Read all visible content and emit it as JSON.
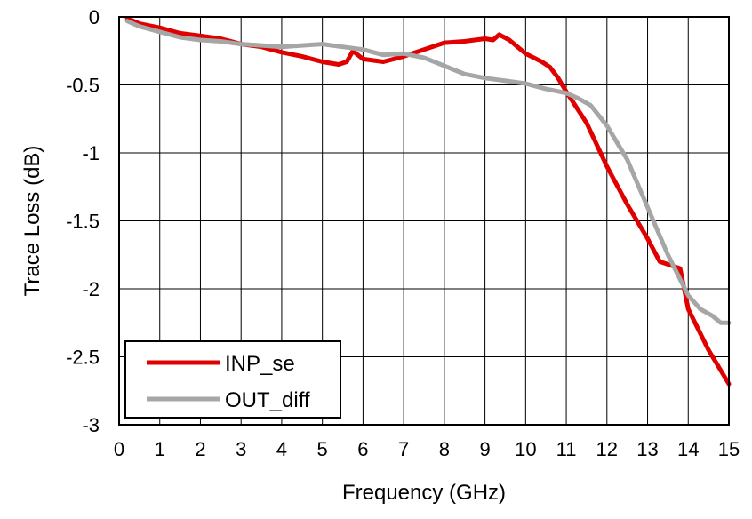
{
  "chart_data": {
    "type": "line",
    "title": "",
    "xlabel": "Frequency (GHz)",
    "ylabel": "Trace Loss (dB)",
    "xlim": [
      0,
      15
    ],
    "ylim": [
      -3,
      0
    ],
    "xticks": [
      0,
      1,
      2,
      3,
      4,
      5,
      6,
      7,
      8,
      9,
      10,
      11,
      12,
      13,
      14,
      15
    ],
    "yticks": [
      0,
      -0.5,
      -1,
      -1.5,
      -2,
      -2.5,
      -3
    ],
    "ytick_labels": [
      "0",
      "-0.5",
      "-1",
      "-1.5",
      "-2",
      "-2.5",
      "-3"
    ],
    "grid": true,
    "legend_position": "bottom-left",
    "series": [
      {
        "name": "INP_se",
        "color": "#e00000",
        "x": [
          0.2,
          0.5,
          1,
          1.5,
          2,
          2.5,
          3,
          3.5,
          4,
          4.5,
          5,
          5.4,
          5.6,
          5.75,
          6,
          6.5,
          7,
          7.5,
          8,
          8.5,
          9,
          9.2,
          9.35,
          9.6,
          10,
          10.4,
          10.6,
          10.8,
          11,
          11.5,
          12,
          12.5,
          13,
          13.3,
          13.6,
          13.8,
          14,
          14.5,
          15
        ],
        "values": [
          -0.01,
          -0.05,
          -0.08,
          -0.12,
          -0.14,
          -0.16,
          -0.2,
          -0.22,
          -0.26,
          -0.29,
          -0.33,
          -0.35,
          -0.33,
          -0.25,
          -0.31,
          -0.33,
          -0.29,
          -0.24,
          -0.19,
          -0.18,
          -0.16,
          -0.17,
          -0.13,
          -0.17,
          -0.27,
          -0.33,
          -0.37,
          -0.45,
          -0.55,
          -0.78,
          -1.1,
          -1.38,
          -1.63,
          -1.8,
          -1.83,
          -1.85,
          -2.15,
          -2.45,
          -2.7
        ]
      },
      {
        "name": "OUT_diff",
        "color": "#a6a6a6",
        "x": [
          0.2,
          0.5,
          1,
          1.5,
          2,
          2.5,
          3,
          3.5,
          4,
          4.5,
          5,
          5.5,
          6,
          6.5,
          7,
          7.5,
          8,
          8.5,
          9,
          9.5,
          10,
          10.5,
          11,
          11.3,
          11.6,
          12,
          12.5,
          13,
          13.5,
          14,
          14.3,
          14.6,
          14.8,
          15
        ],
        "values": [
          -0.03,
          -0.07,
          -0.11,
          -0.15,
          -0.17,
          -0.18,
          -0.2,
          -0.21,
          -0.22,
          -0.21,
          -0.2,
          -0.22,
          -0.24,
          -0.28,
          -0.27,
          -0.3,
          -0.36,
          -0.42,
          -0.45,
          -0.47,
          -0.49,
          -0.53,
          -0.56,
          -0.6,
          -0.65,
          -0.8,
          -1.05,
          -1.4,
          -1.75,
          -2.05,
          -2.15,
          -2.2,
          -2.25,
          -2.25
        ]
      }
    ]
  }
}
